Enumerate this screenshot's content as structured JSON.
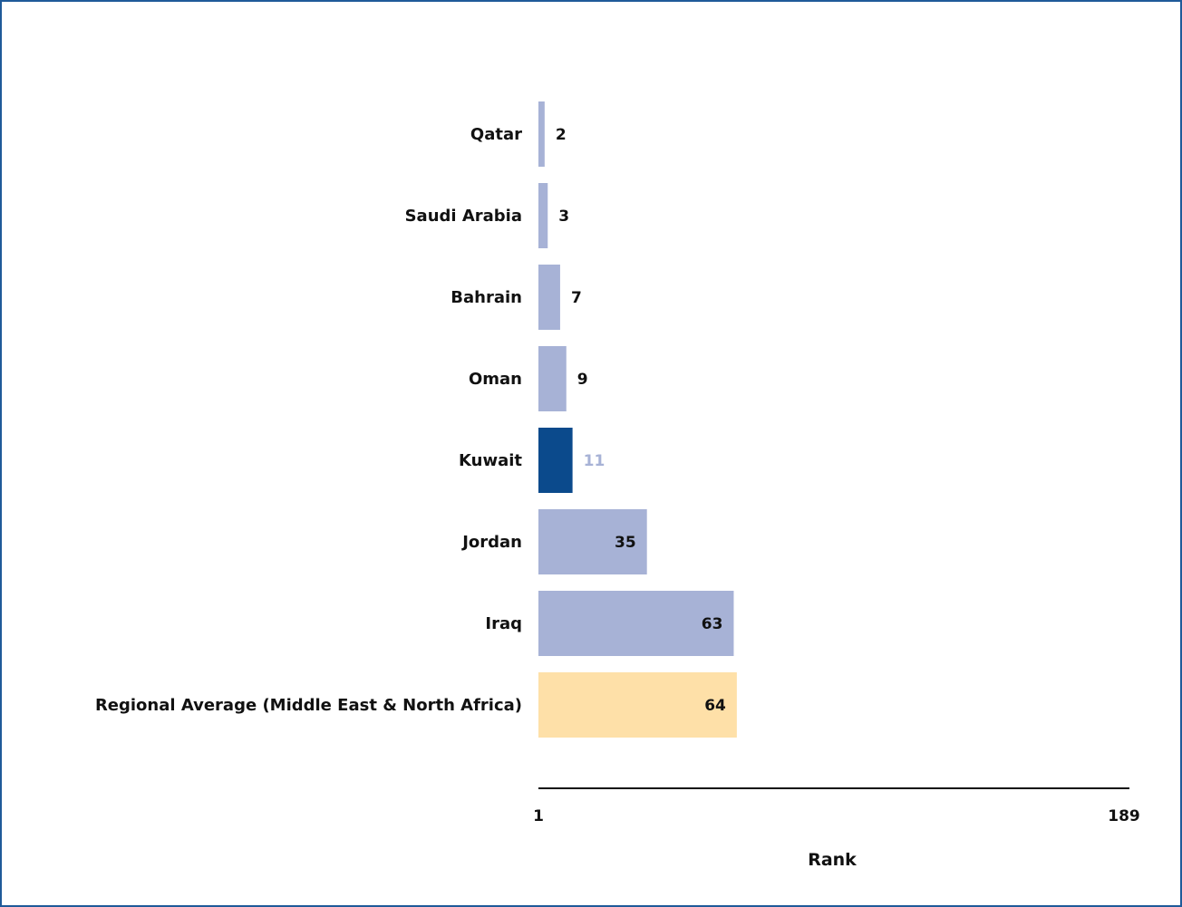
{
  "chart_data": {
    "type": "bar",
    "orientation": "horizontal",
    "categories": [
      "Qatar",
      "Saudi Arabia",
      "Bahrain",
      "Oman",
      "Kuwait",
      "Jordan",
      "Iraq",
      "Regional Average (Middle East & North Africa)"
    ],
    "values": [
      2,
      3,
      7,
      9,
      11,
      35,
      63,
      64
    ],
    "xlabel": "Rank",
    "xlim": [
      1,
      189
    ],
    "x_ticks": [
      "1",
      "189"
    ],
    "grid": false,
    "colors": {
      "default": "#a7b2d6",
      "highlight": "#0b4a8c",
      "average": "#fee0a8",
      "label_dark": "#111111",
      "label_highlight": "#a7b2d6",
      "frame": "#1f5a99"
    },
    "highlight_category": "Kuwait",
    "average_category": "Regional Average (Middle East & North Africa)"
  }
}
